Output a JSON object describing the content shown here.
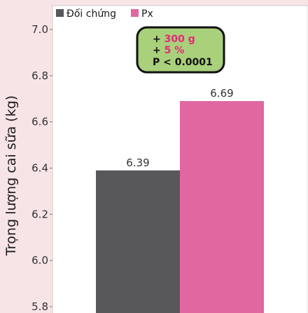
{
  "chart_data": {
    "type": "bar",
    "ylabel": "Trọng lượng cai sữa (kg)",
    "ylim": [
      5.8,
      7.0
    ],
    "yticks": [
      "5.8",
      "6.0",
      "6.2",
      "6.4",
      "6.6",
      "6.8",
      "7.0"
    ],
    "grid": false,
    "legend_position": "top-left",
    "series": [
      {
        "name": "Đối chứng",
        "value": 6.39,
        "label": "6.39",
        "color": "#58585a"
      },
      {
        "name": "Px",
        "value": 6.69,
        "label": "6.69",
        "color": "#e0679f"
      }
    ],
    "annotation": {
      "line1_prefix": "+ ",
      "line1_value": "300 g",
      "line2_prefix": "+ ",
      "line2_value": "5 %",
      "line3": "P < 0.0001",
      "highlight_color": "#e8277a",
      "box_color": "#a9d07a"
    }
  }
}
